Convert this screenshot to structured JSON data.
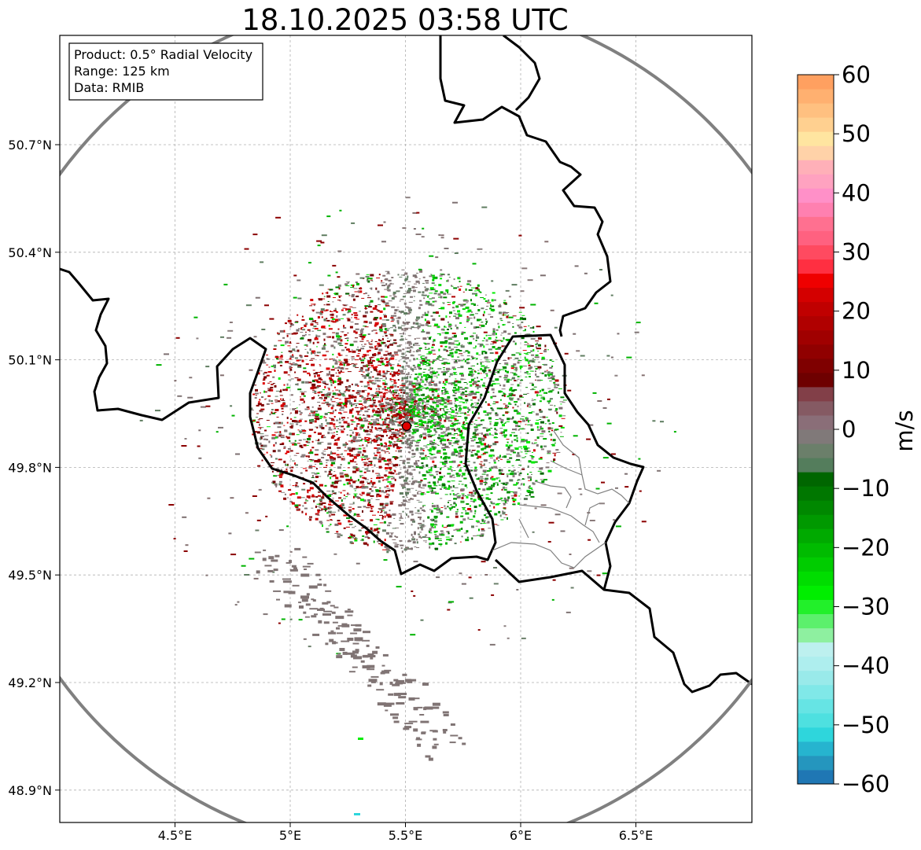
{
  "title": "18.10.2025 03:58 UTC",
  "info_box": {
    "product": "Product: 0.5° Radial Velocity",
    "range": "Range: 125 km",
    "data": "Data: RMIB"
  },
  "map": {
    "lon_range": [
      4.0,
      7.0
    ],
    "lat_range": [
      48.8,
      51.0
    ],
    "x_ticks": [
      {
        "value": 4.5,
        "label": "4.5°E"
      },
      {
        "value": 5.0,
        "label": "5°E"
      },
      {
        "value": 5.5,
        "label": "5.5°E"
      },
      {
        "value": 6.0,
        "label": "6°E"
      },
      {
        "value": 6.5,
        "label": "6.5°E"
      }
    ],
    "y_ticks": [
      {
        "value": 50.7,
        "label": "50.7°N"
      },
      {
        "value": 50.4,
        "label": "50.4°N"
      },
      {
        "value": 50.1,
        "label": "50.1°N"
      },
      {
        "value": 49.8,
        "label": "49.8°N"
      },
      {
        "value": 49.5,
        "label": "49.5°N"
      },
      {
        "value": 49.2,
        "label": "49.2°N"
      },
      {
        "value": 48.9,
        "label": "48.9°N"
      }
    ],
    "radar_site": {
      "lon": 5.505,
      "lat": 49.915
    },
    "range_km": 125
  },
  "colorbar": {
    "label": "m/s",
    "min": -60,
    "max": 60,
    "ticks": [
      60,
      50,
      40,
      30,
      20,
      10,
      0,
      -10,
      -20,
      -30,
      -40,
      -50,
      -60
    ],
    "tick_labels": [
      "60",
      "50",
      "40",
      "30",
      "20",
      "10",
      "0",
      "−10",
      "−20",
      "−30",
      "−40",
      "−50",
      "−60"
    ],
    "colors": [
      "#1f77b4",
      "#2596be",
      "#26b4cf",
      "#2ed6dc",
      "#4ee0e0",
      "#66e4e4",
      "#80e8e8",
      "#99eaea",
      "#aeeeee",
      "#bdf0ef",
      "#8ef0a0",
      "#5cf06c",
      "#22f02a",
      "#00ee00",
      "#00dd00",
      "#00cc00",
      "#00bb00",
      "#00aa00",
      "#009900",
      "#008800",
      "#007700",
      "#006600",
      "#547d5c",
      "#6b7f6a",
      "#807979",
      "#8a6e78",
      "#855a63",
      "#823f48",
      "#6e0000",
      "#7f0000",
      "#900000",
      "#a00000",
      "#b00000",
      "#c00000",
      "#d40000",
      "#ef0000",
      "#ff2f41",
      "#ff4a60",
      "#ff6180",
      "#ff7090",
      "#ff80b0",
      "#ff90c8",
      "#ffa2c0",
      "#ffb0b8",
      "#ffd2a8",
      "#ffe5a0",
      "#ffd090",
      "#ffc080",
      "#ffb070",
      "#ffa060"
    ]
  },
  "radar_field": {
    "type": "radial_velocity",
    "receding_color": "#8b0000",
    "approaching_color": "#00b300",
    "zero_color": "#807474"
  }
}
